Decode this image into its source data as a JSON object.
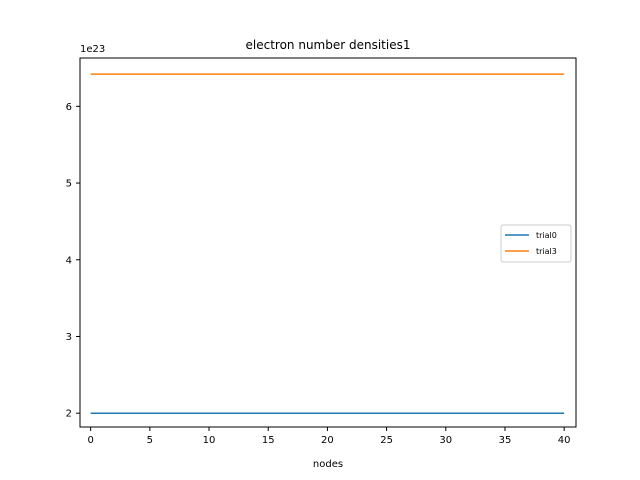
{
  "chart_data": {
    "type": "line",
    "title": "electron number densities1",
    "xlabel": "nodes",
    "ylabel": "",
    "y_offset_label": "1e23",
    "xlim": [
      -0.9,
      41
    ],
    "ylim": [
      1.82,
      6.63
    ],
    "x_ticks": [
      0,
      5,
      10,
      15,
      20,
      25,
      30,
      35,
      40
    ],
    "y_ticks": [
      2,
      3,
      4,
      5,
      6
    ],
    "y_scale_factor": 1e+23,
    "grid": false,
    "legend_position": "center-right",
    "series": [
      {
        "name": "trial0",
        "color": "#1f77b4",
        "x": [
          0,
          40
        ],
        "y": [
          2.0,
          2.0
        ]
      },
      {
        "name": "trial3",
        "color": "#ff7f0e",
        "x": [
          0,
          40
        ],
        "y": [
          6.42,
          6.42
        ]
      }
    ]
  }
}
